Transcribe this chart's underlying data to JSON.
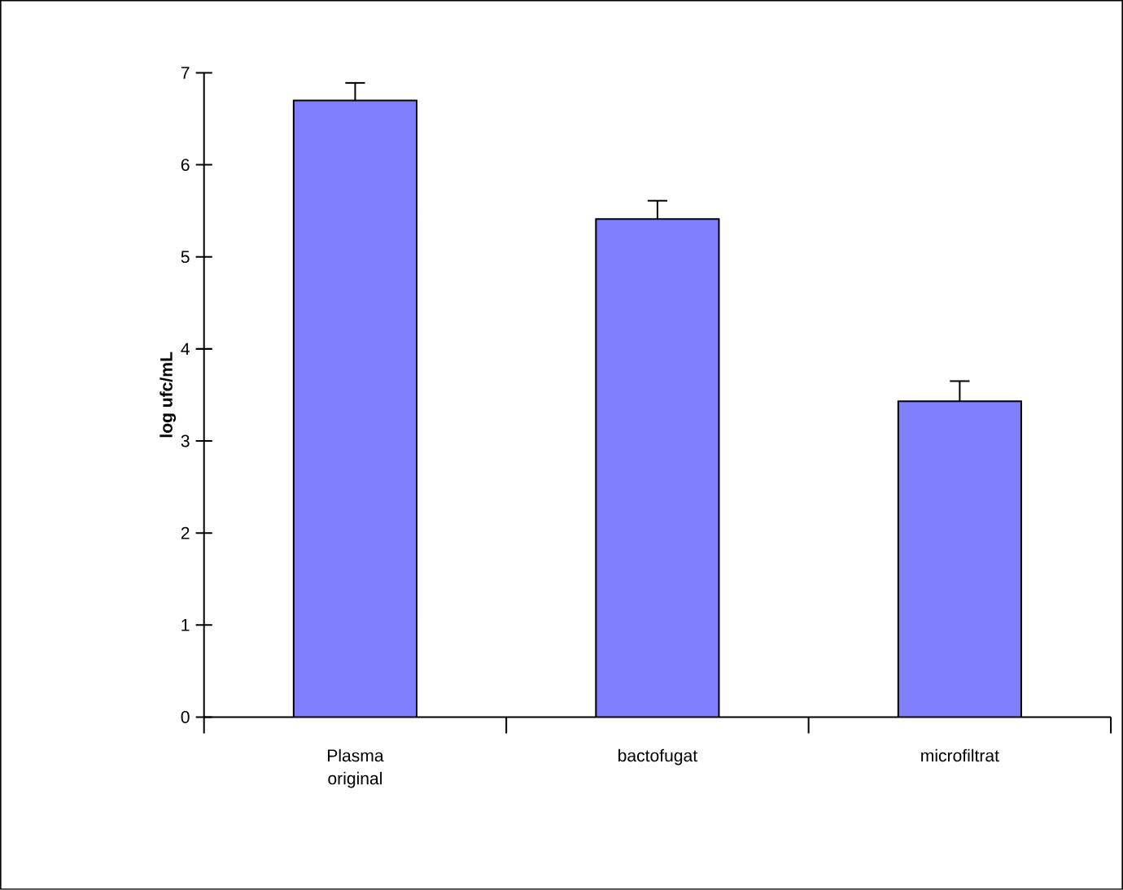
{
  "chart_data": {
    "type": "bar",
    "ylabel": "log ufc/mL",
    "categories": [
      "Plasma original",
      "bactofugat",
      "microfiltrat"
    ],
    "values": [
      6.7,
      5.41,
      3.43
    ],
    "errors": [
      0.19,
      0.2,
      0.22
    ],
    "color": "#8080ff",
    "ylim": [
      0,
      7
    ],
    "yticks": [
      0,
      1,
      2,
      3,
      4,
      5,
      6,
      7
    ],
    "grid": false
  }
}
